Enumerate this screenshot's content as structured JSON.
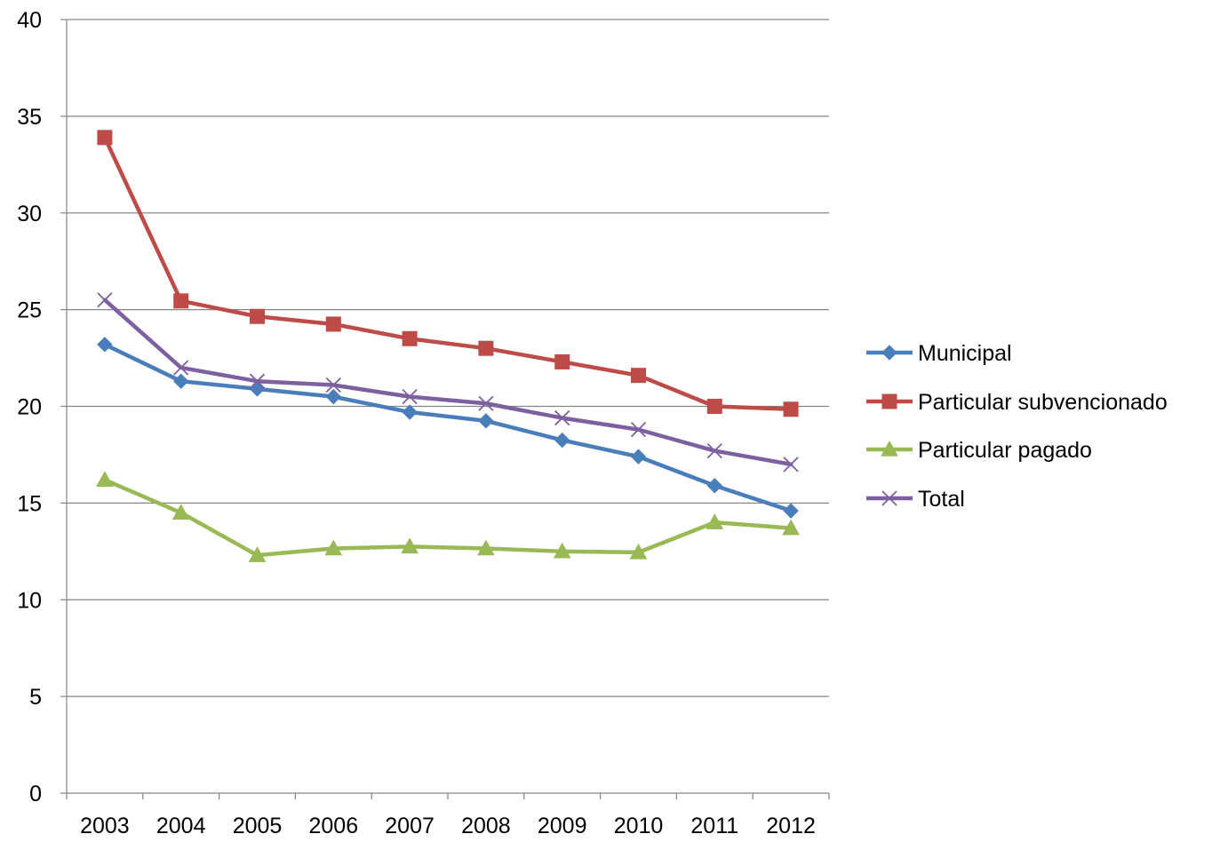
{
  "chart_data": {
    "type": "line",
    "title": "",
    "xlabel": "",
    "ylabel": "",
    "categories": [
      "2003",
      "2004",
      "2005",
      "2006",
      "2007",
      "2008",
      "2009",
      "2010",
      "2011",
      "2012"
    ],
    "ylim": [
      0,
      40
    ],
    "yticks": [
      0,
      5,
      10,
      15,
      20,
      25,
      30,
      35,
      40
    ],
    "grid": "horizontal",
    "legend_position": "right",
    "series": [
      {
        "name": "Municipal",
        "color": "#4A7EBB",
        "marker": "diamond",
        "values": [
          23.2,
          21.3,
          20.9,
          20.5,
          19.7,
          19.25,
          18.25,
          17.4,
          15.9,
          14.6
        ]
      },
      {
        "name": "Particular subvencionado",
        "color": "#BE4B48",
        "marker": "square",
        "values": [
          33.9,
          25.45,
          24.65,
          24.25,
          23.5,
          23.0,
          22.3,
          21.6,
          20.0,
          19.85
        ]
      },
      {
        "name": "Particular pagado",
        "color": "#98B954",
        "marker": "triangle",
        "values": [
          16.2,
          14.5,
          12.3,
          12.65,
          12.75,
          12.65,
          12.5,
          12.45,
          14.0,
          13.7
        ]
      },
      {
        "name": "Total",
        "color": "#7D60A0",
        "marker": "x",
        "values": [
          25.5,
          22.0,
          21.3,
          21.1,
          20.5,
          20.15,
          19.4,
          18.8,
          17.7,
          17.0
        ]
      }
    ]
  }
}
